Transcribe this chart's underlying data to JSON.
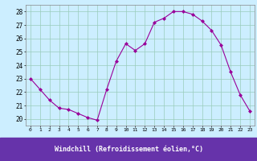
{
  "x": [
    0,
    1,
    2,
    3,
    4,
    5,
    6,
    7,
    8,
    9,
    10,
    11,
    12,
    13,
    14,
    15,
    16,
    17,
    18,
    19,
    20,
    21,
    22,
    23
  ],
  "y": [
    23.0,
    22.2,
    21.4,
    20.8,
    20.7,
    20.4,
    20.1,
    19.9,
    22.2,
    24.3,
    25.6,
    25.1,
    25.6,
    27.2,
    27.5,
    28.0,
    28.0,
    27.8,
    27.3,
    26.6,
    25.5,
    23.5,
    21.8,
    20.6
  ],
  "line_color": "#990099",
  "marker": "D",
  "marker_size": 2,
  "bg_color": "#cceeff",
  "grid_color": "#99ccbb",
  "xlabel": "Windchill (Refroidissement éolien,°C)",
  "xlabel_bg": "#6633aa",
  "xlabel_color": "#ffffff",
  "ylim": [
    19.5,
    28.5
  ],
  "xlim": [
    -0.5,
    23.5
  ],
  "yticks": [
    20,
    21,
    22,
    23,
    24,
    25,
    26,
    27,
    28
  ],
  "xticks": [
    0,
    1,
    2,
    3,
    4,
    5,
    6,
    7,
    8,
    9,
    10,
    11,
    12,
    13,
    14,
    15,
    16,
    17,
    18,
    19,
    20,
    21,
    22,
    23
  ]
}
